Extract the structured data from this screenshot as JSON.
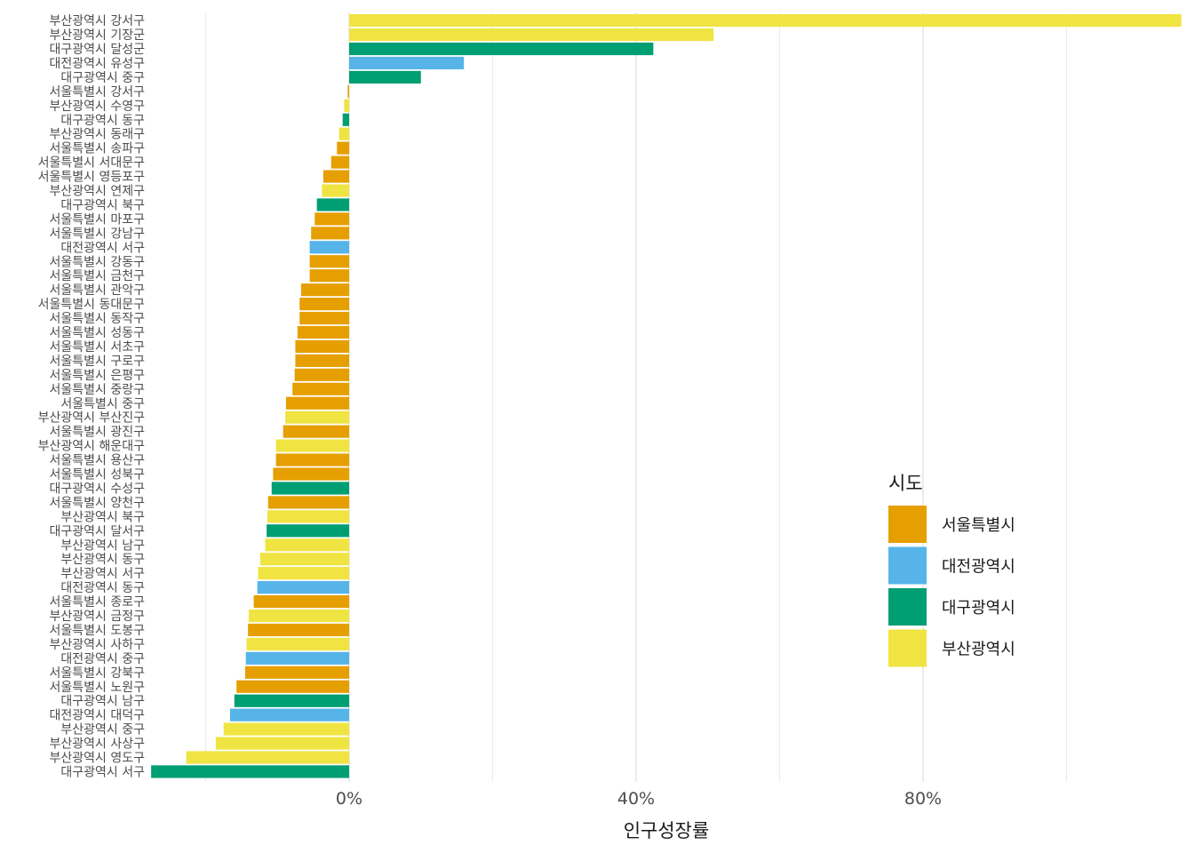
{
  "chart_data": {
    "type": "bar",
    "orientation": "horizontal",
    "title": "",
    "xlabel": "인구성장률",
    "ylabel": "",
    "xlim": [
      -0.25,
      1.16
    ],
    "xticks": [
      {
        "value": 0,
        "label": "0%"
      },
      {
        "value": 0.4,
        "label": "40%"
      },
      {
        "value": 0.8,
        "label": "80%"
      }
    ],
    "minor_gridlines": [
      -0.2,
      0.2,
      0.6,
      1.0
    ],
    "grid": true,
    "legend": {
      "title": "시도",
      "position": "right",
      "entries": [
        {
          "name": "서울특별시",
          "color": "#E69F00"
        },
        {
          "name": "대전광역시",
          "color": "#56B4E9"
        },
        {
          "name": "대구광역시",
          "color": "#009E73"
        },
        {
          "name": "부산광역시",
          "color": "#F0E442"
        }
      ]
    },
    "bars": [
      {
        "label": "부산광역시 강서구",
        "sido": "부산광역시",
        "value": 1.16
      },
      {
        "label": "부산광역시 기장군",
        "sido": "부산광역시",
        "value": 0.508
      },
      {
        "label": "대구광역시 달성군",
        "sido": "대구광역시",
        "value": 0.424
      },
      {
        "label": "대전광역시 유성구",
        "sido": "대전광역시",
        "value": 0.16
      },
      {
        "label": "대구광역시 중구",
        "sido": "대구광역시",
        "value": 0.1
      },
      {
        "label": "서울특별시 강서구",
        "sido": "서울특별시",
        "value": -0.002
      },
      {
        "label": "부산광역시 수영구",
        "sido": "부산광역시",
        "value": -0.007
      },
      {
        "label": "대구광역시 동구",
        "sido": "대구광역시",
        "value": -0.009
      },
      {
        "label": "부산광역시 동래구",
        "sido": "부산광역시",
        "value": -0.014
      },
      {
        "label": "서울특별시 송파구",
        "sido": "서울특별시",
        "value": -0.017
      },
      {
        "label": "서울특별시 서대문구",
        "sido": "서울특별시",
        "value": -0.025
      },
      {
        "label": "서울특별시 영등포구",
        "sido": "서울특별시",
        "value": -0.036
      },
      {
        "label": "부산광역시 연제구",
        "sido": "부산광역시",
        "value": -0.038
      },
      {
        "label": "대구광역시 북구",
        "sido": "대구광역시",
        "value": -0.045
      },
      {
        "label": "서울특별시 마포구",
        "sido": "서울특별시",
        "value": -0.048
      },
      {
        "label": "서울특별시 강남구",
        "sido": "서울특별시",
        "value": -0.053
      },
      {
        "label": "대전광역시 서구",
        "sido": "대전광역시",
        "value": -0.055
      },
      {
        "label": "서울특별시 강동구",
        "sido": "서울특별시",
        "value": -0.055
      },
      {
        "label": "서울특별시 금천구",
        "sido": "서울특별시",
        "value": -0.055
      },
      {
        "label": "서울특별시 관악구",
        "sido": "서울특별시",
        "value": -0.067
      },
      {
        "label": "서울특별시 동대문구",
        "sido": "서울특별시",
        "value": -0.069
      },
      {
        "label": "서울특별시 동작구",
        "sido": "서울특별시",
        "value": -0.069
      },
      {
        "label": "서울특별시 성동구",
        "sido": "서울특별시",
        "value": -0.072
      },
      {
        "label": "서울특별시 서초구",
        "sido": "서울특별시",
        "value": -0.075
      },
      {
        "label": "서울특별시 구로구",
        "sido": "서울특별시",
        "value": -0.075
      },
      {
        "label": "서울특별시 은평구",
        "sido": "서울특별시",
        "value": -0.076
      },
      {
        "label": "서울특별시 중랑구",
        "sido": "서울특별시",
        "value": -0.079
      },
      {
        "label": "서울특별시 중구",
        "sido": "서울특별시",
        "value": -0.088
      },
      {
        "label": "부산광역시 부산진구",
        "sido": "부산광역시",
        "value": -0.089
      },
      {
        "label": "서울특별시 광진구",
        "sido": "서울특별시",
        "value": -0.092
      },
      {
        "label": "부산광역시 해운대구",
        "sido": "부산광역시",
        "value": -0.102
      },
      {
        "label": "서울특별시 용산구",
        "sido": "서울특별시",
        "value": -0.102
      },
      {
        "label": "서울특별시 성북구",
        "sido": "서울특별시",
        "value": -0.106
      },
      {
        "label": "대구광역시 수성구",
        "sido": "대구광역시",
        "value": -0.108
      },
      {
        "label": "서울특별시 양천구",
        "sido": "서울특별시",
        "value": -0.113
      },
      {
        "label": "부산광역시 북구",
        "sido": "부산광역시",
        "value": -0.114
      },
      {
        "label": "대구광역시 달서구",
        "sido": "대구광역시",
        "value": -0.115
      },
      {
        "label": "부산광역시 남구",
        "sido": "부산광역시",
        "value": -0.117
      },
      {
        "label": "부산광역시 동구",
        "sido": "부산광역시",
        "value": -0.124
      },
      {
        "label": "부산광역시 서구",
        "sido": "부산광역시",
        "value": -0.127
      },
      {
        "label": "대전광역시 동구",
        "sido": "대전광역시",
        "value": -0.128
      },
      {
        "label": "서울특별시 종로구",
        "sido": "서울특별시",
        "value": -0.133
      },
      {
        "label": "부산광역시 금정구",
        "sido": "부산광역시",
        "value": -0.14
      },
      {
        "label": "서울특별시 도봉구",
        "sido": "서울특별시",
        "value": -0.141
      },
      {
        "label": "부산광역시 사하구",
        "sido": "부산광역시",
        "value": -0.143
      },
      {
        "label": "대전광역시 중구",
        "sido": "대전광역시",
        "value": -0.144
      },
      {
        "label": "서울특별시 강북구",
        "sido": "서울특별시",
        "value": -0.145
      },
      {
        "label": "서울특별시 노원구",
        "sido": "서울특별시",
        "value": -0.157
      },
      {
        "label": "대구광역시 남구",
        "sido": "대구광역시",
        "value": -0.16
      },
      {
        "label": "대전광역시 대덕구",
        "sido": "대전광역시",
        "value": -0.166
      },
      {
        "label": "부산광역시 중구",
        "sido": "부산광역시",
        "value": -0.175
      },
      {
        "label": "부산광역시 사상구",
        "sido": "부산광역시",
        "value": -0.186
      },
      {
        "label": "부산광역시 영도구",
        "sido": "부산광역시",
        "value": -0.227
      },
      {
        "label": "대구광역시 서구",
        "sido": "대구광역시",
        "value": -0.276
      }
    ]
  }
}
